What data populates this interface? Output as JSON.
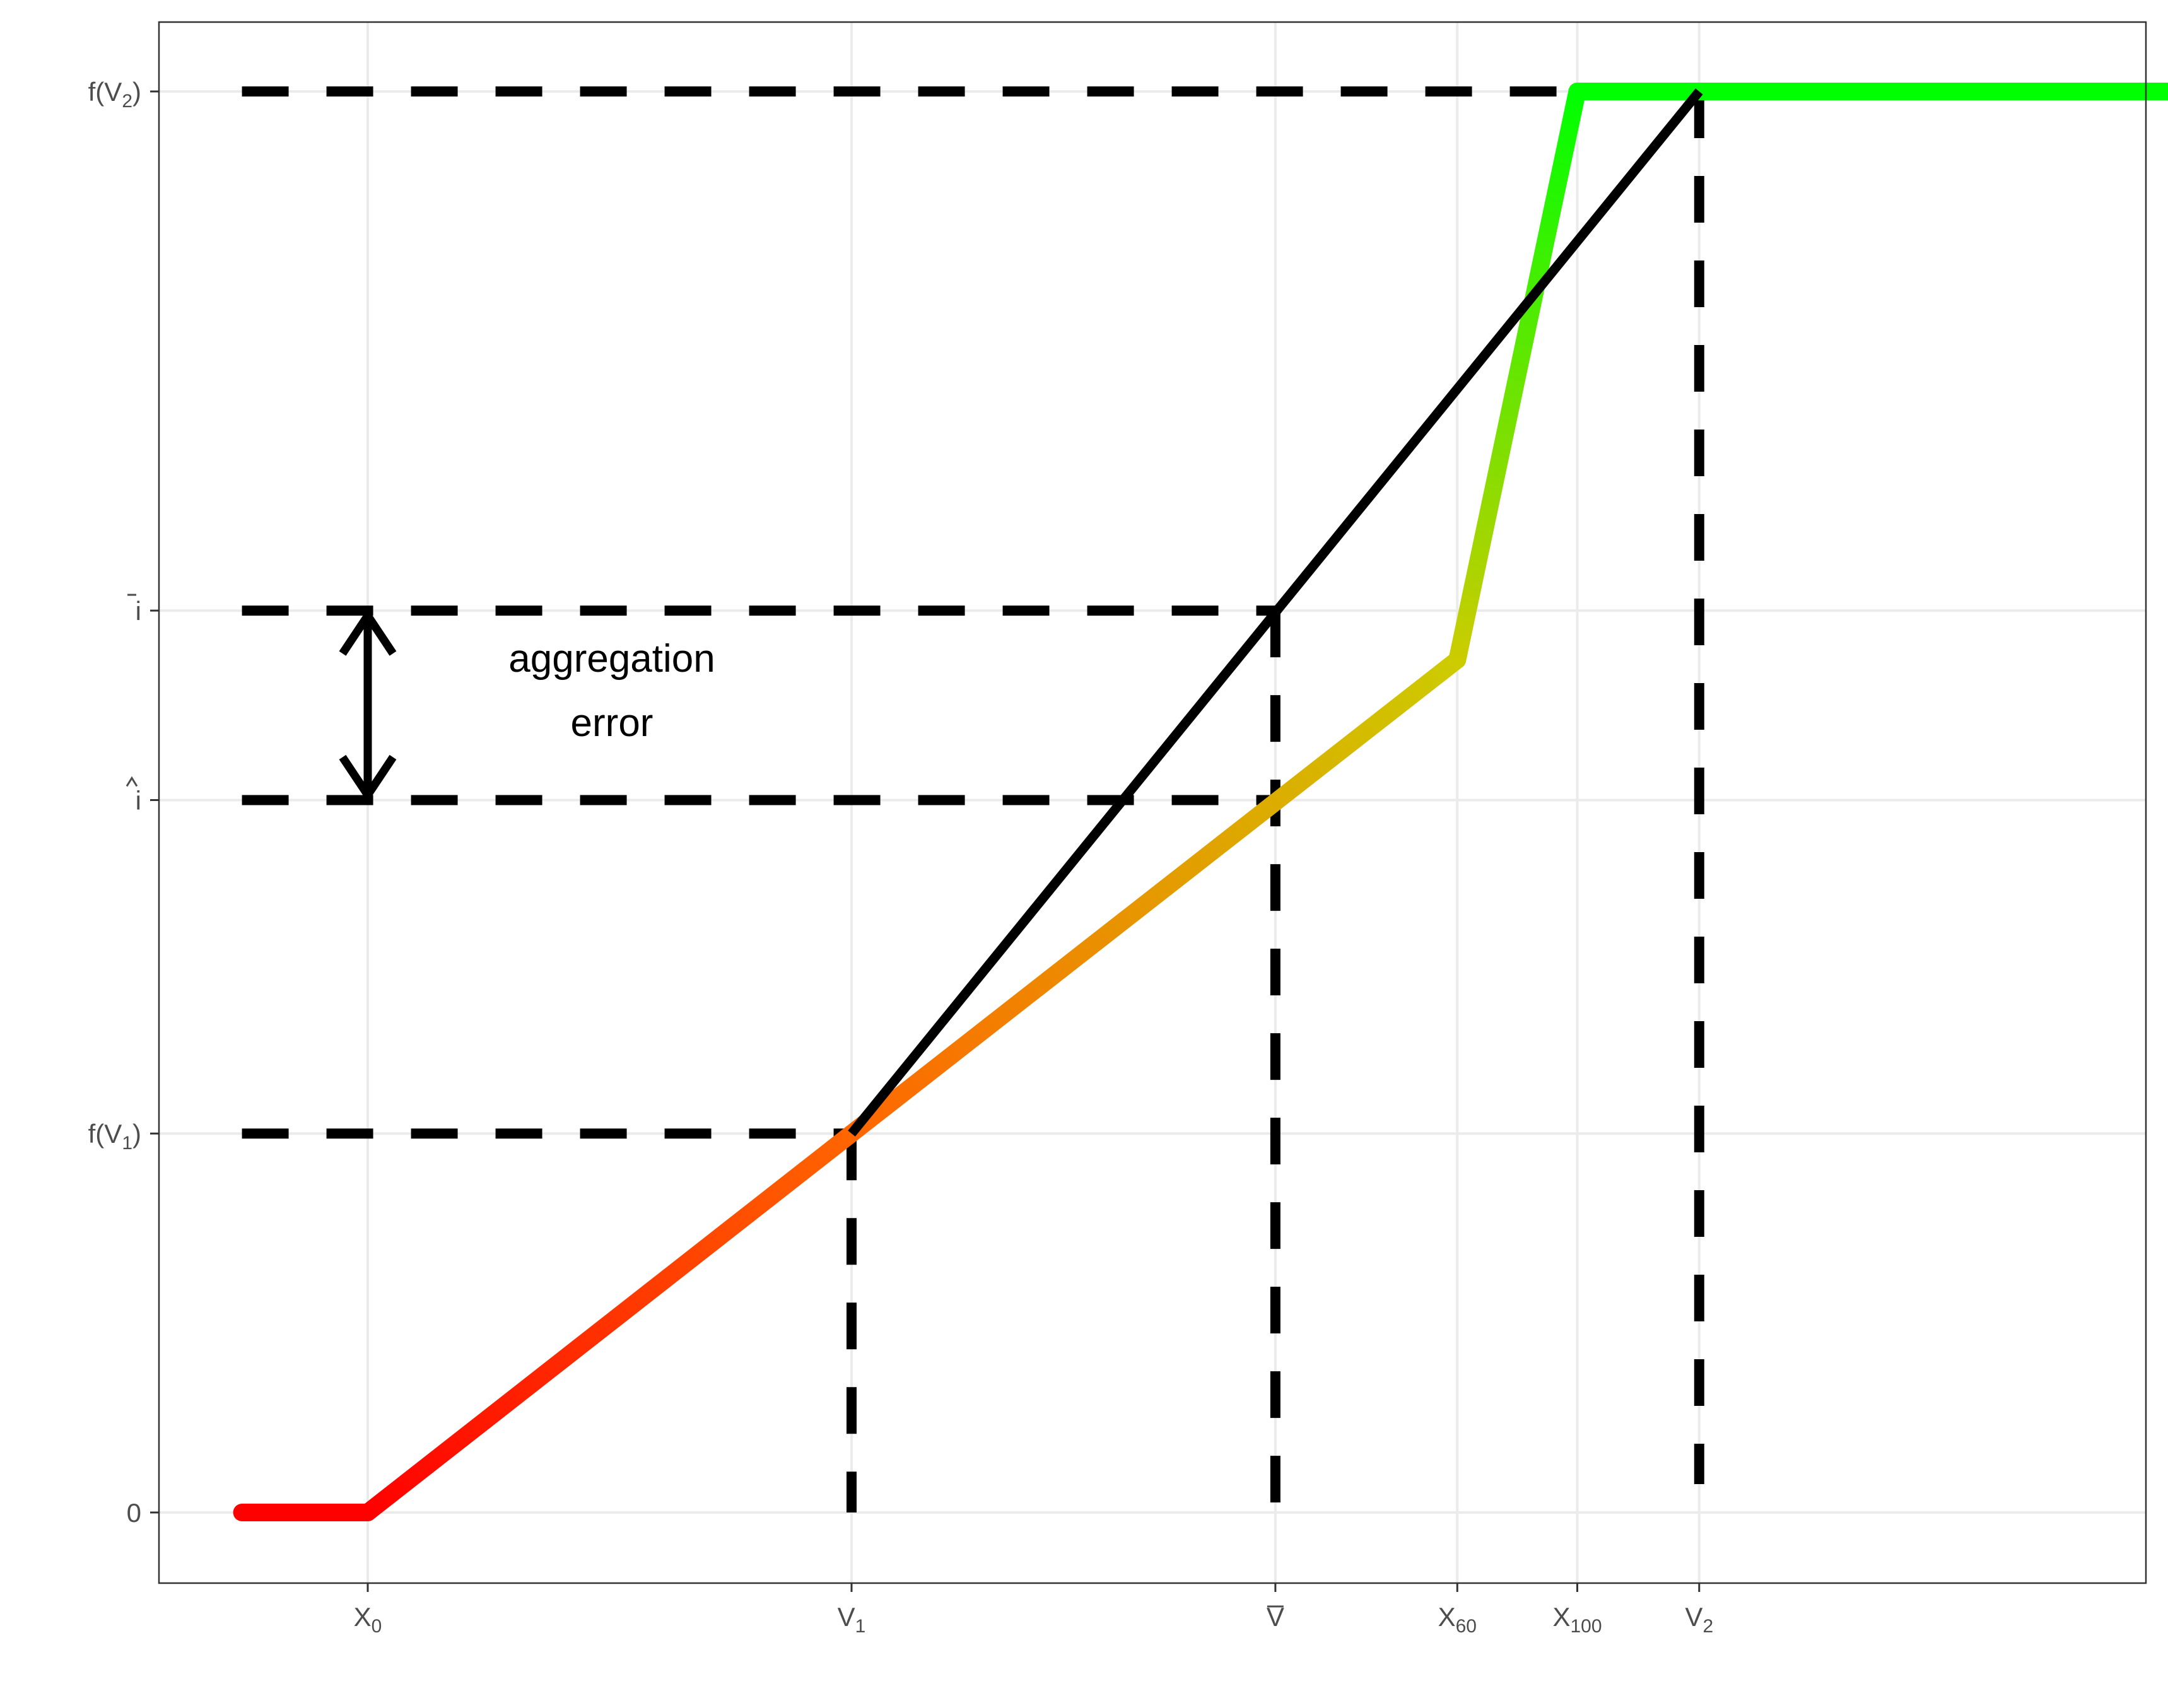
{
  "chart_data": {
    "type": "line",
    "title": "",
    "xlabel": "",
    "ylabel": "",
    "xlim": [
      -0.6,
      9.6
    ],
    "ylim": [
      -0.35,
      7.5
    ],
    "x_ticks": [
      {
        "pos": 0.0,
        "base": "X",
        "sub": "0",
        "bar": false
      },
      {
        "pos": 2.5,
        "base": "V",
        "sub": "1",
        "bar": false
      },
      {
        "pos": 4.69,
        "base": "V",
        "sub": "",
        "bar": true
      },
      {
        "pos": 5.63,
        "base": "X",
        "sub": "60",
        "bar": false
      },
      {
        "pos": 6.25,
        "base": "X",
        "sub": "100",
        "bar": false
      },
      {
        "pos": 6.88,
        "base": "V",
        "sub": "2",
        "bar": false
      }
    ],
    "y_ticks": [
      {
        "pos": 0.0,
        "base": "0",
        "sub": "",
        "suffix": "",
        "accent": ""
      },
      {
        "pos": 2.0,
        "base": "f(V",
        "sub": "1",
        "suffix": ")",
        "accent": ""
      },
      {
        "pos": 3.76,
        "base": "i",
        "sub": "",
        "suffix": "",
        "accent": "hat"
      },
      {
        "pos": 4.76,
        "base": "i",
        "sub": "",
        "suffix": "",
        "accent": "bar"
      },
      {
        "pos": 7.5,
        "base": "f(V",
        "sub": "2",
        "suffix": ")",
        "accent": ""
      }
    ],
    "series": [
      {
        "colors": [
          "#ff0000",
          "#ff0000",
          "#ff6600",
          "#cccc00",
          "#00ff00",
          "#00ff00"
        ],
        "x": [
          -0.65,
          0.0,
          2.5,
          5.63,
          6.25,
          9.65
        ],
        "y": [
          0.0,
          0.0,
          2.0,
          4.5,
          7.5,
          7.5
        ]
      },
      {
        "color": "#000000",
        "x": [
          2.5,
          6.88
        ],
        "y": [
          2.0,
          7.5
        ]
      }
    ],
    "reference_lines": [
      {
        "orientation": "h",
        "y": 7.5,
        "x_from": -0.65,
        "x_to": 6.6
      },
      {
        "orientation": "h",
        "y": 4.76,
        "x_from": -0.65,
        "x_to": 4.69
      },
      {
        "orientation": "h",
        "y": 3.76,
        "x_from": -0.65,
        "x_to": 4.69
      },
      {
        "orientation": "h",
        "y": 2.0,
        "x_from": -0.65,
        "x_to": 2.5
      },
      {
        "orientation": "v",
        "x": 2.5,
        "y_from": 0.0,
        "y_to": 2.0
      },
      {
        "orientation": "v",
        "x": 4.69,
        "y_from": 0.0,
        "y_to": 4.76
      },
      {
        "orientation": "v",
        "x": 6.88,
        "y_from": 0.15,
        "y_to": 7.5
      }
    ],
    "annotations": [
      {
        "text_lines": [
          "aggregation",
          "error"
        ],
        "arrow_x": 0.0,
        "arrow_y_from": 3.76,
        "arrow_y_to": 4.76
      }
    ],
    "grid": true,
    "legend": "none"
  }
}
